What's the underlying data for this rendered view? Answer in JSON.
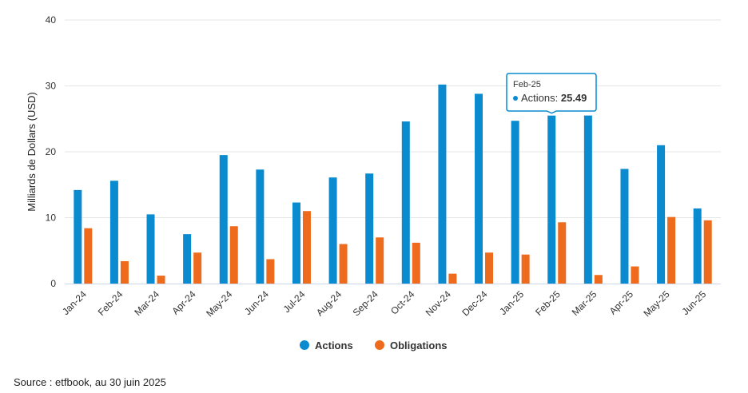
{
  "chart_data": {
    "type": "bar",
    "categories": [
      "Jan-24",
      "Feb-24",
      "Mar-24",
      "Apr-24",
      "May-24",
      "Jun-24",
      "Jul-24",
      "Aug-24",
      "Sep-24",
      "Oct-24",
      "Nov-24",
      "Dec-24",
      "Jan-25",
      "Feb-25",
      "Mar-25",
      "Apr-25",
      "May-25",
      "Jun-25"
    ],
    "series": [
      {
        "name": "Actions",
        "color": "#0a8bd0",
        "values": [
          14.2,
          15.6,
          10.5,
          7.5,
          19.5,
          17.3,
          12.3,
          16.1,
          16.7,
          24.6,
          30.2,
          28.8,
          24.7,
          25.49,
          25.5,
          17.4,
          21.0,
          11.4
        ]
      },
      {
        "name": "Obligations",
        "color": "#ee6a1c",
        "values": [
          8.4,
          3.4,
          1.2,
          4.7,
          8.7,
          3.7,
          11.0,
          6.0,
          7.0,
          6.2,
          1.5,
          4.7,
          4.4,
          9.3,
          1.3,
          2.6,
          10.1,
          9.6
        ]
      }
    ],
    "ylabel": "Milliards de Dollars (USD)",
    "ylim": [
      0,
      40
    ],
    "yticks": [
      0,
      10,
      20,
      30,
      40
    ],
    "grid": true,
    "legend": "bottom-center",
    "tooltip": {
      "category": "Feb-25",
      "series": "Actions",
      "label": "Actions: ",
      "value": "25.49"
    }
  },
  "source": "Source : etfbook, au 30 juin 2025"
}
